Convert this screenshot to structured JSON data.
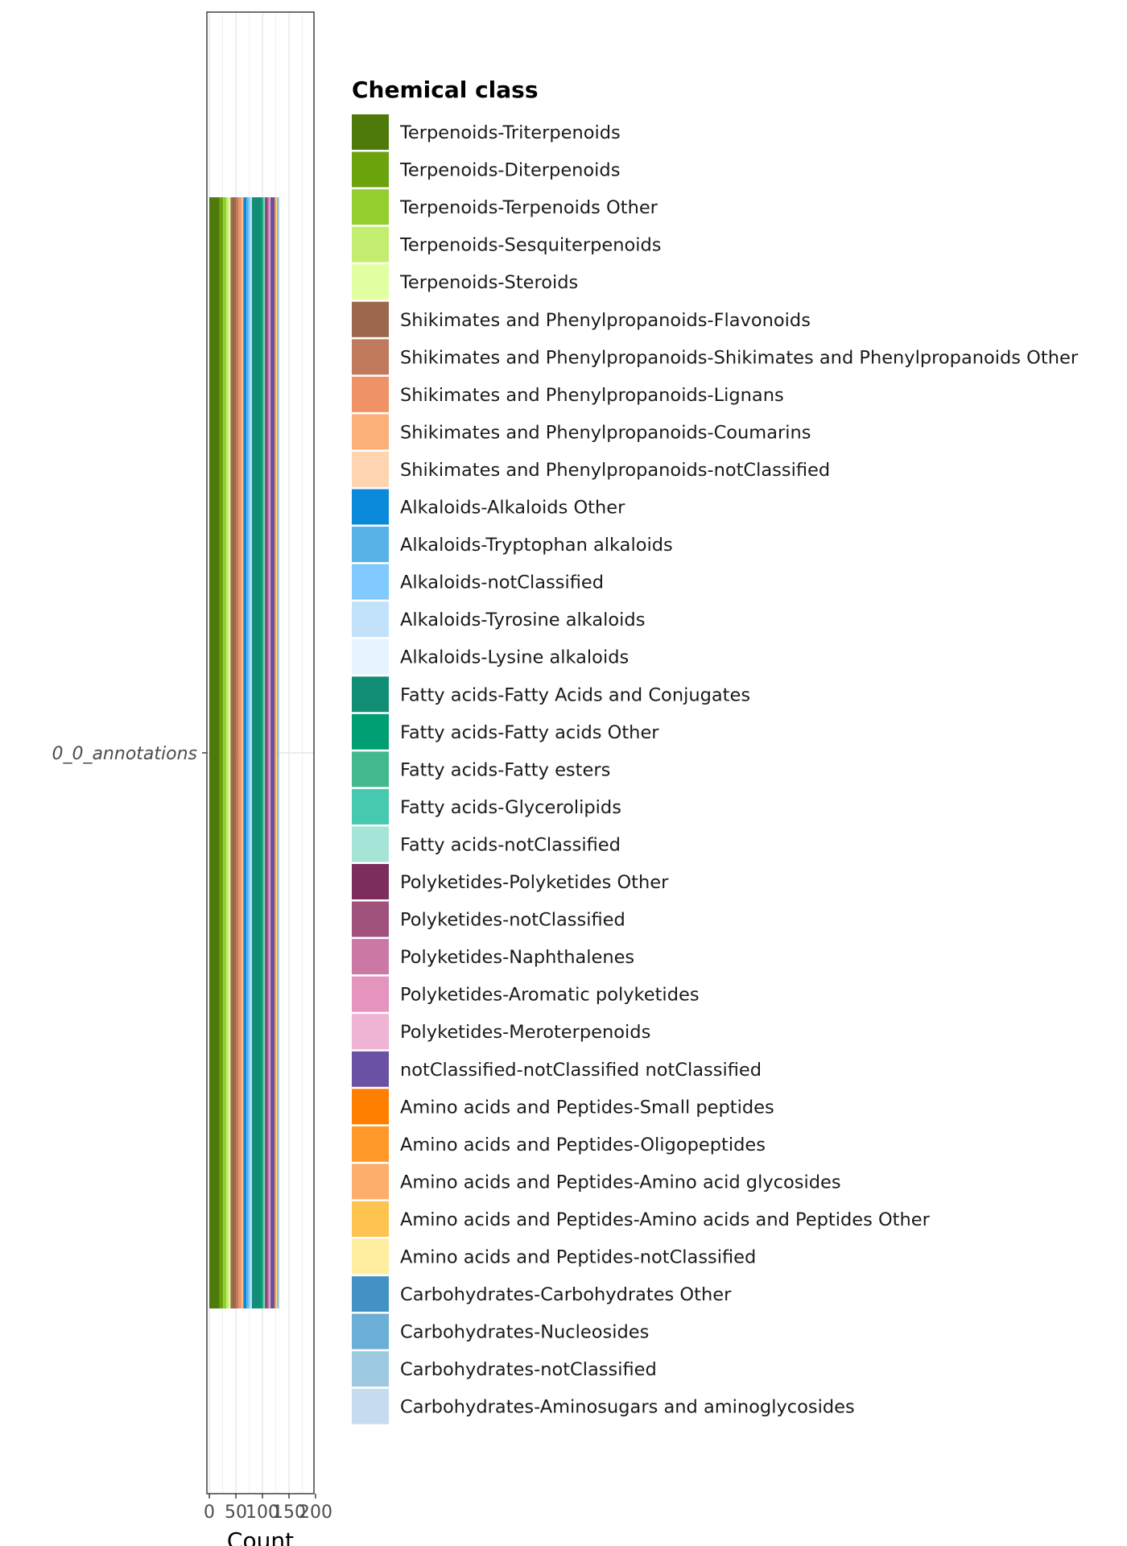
{
  "chart_data": {
    "type": "bar",
    "orientation": "horizontal",
    "stacked": true,
    "categories": [
      "0_0_annotations"
    ],
    "xlabel": "Count",
    "ylabel": "",
    "xlim": [
      0,
      200
    ],
    "x_ticks": [
      "0",
      "50",
      "100",
      "150",
      "200"
    ],
    "grid": true,
    "legend_title": "Chemical class",
    "legend_position": "right",
    "series": [
      {
        "name": "Terpenoids-Triterpenoids",
        "color": "#4d7a0a",
        "values": [
          19
        ]
      },
      {
        "name": "Terpenoids-Diterpenoids",
        "color": "#6aa30c",
        "values": [
          7
        ]
      },
      {
        "name": "Terpenoids-Terpenoids Other",
        "color": "#92cf2e",
        "values": [
          6
        ]
      },
      {
        "name": "Terpenoids-Sesquiterpenoids",
        "color": "#c2ed6e",
        "values": [
          5
        ]
      },
      {
        "name": "Terpenoids-Steroids",
        "color": "#e2ffa2",
        "values": [
          3
        ]
      },
      {
        "name": "Shikimates and Phenylpropanoids-Flavonoids",
        "color": "#9c684c",
        "values": [
          10
        ]
      },
      {
        "name": "Shikimates and Phenylpropanoids-Shikimates and Phenylpropanoids Other",
        "color": "#c27a5c",
        "values": [
          5
        ]
      },
      {
        "name": "Shikimates and Phenylpropanoids-Lignans",
        "color": "#ef9266",
        "values": [
          5
        ]
      },
      {
        "name": "Shikimates and Phenylpropanoids-Coumarins",
        "color": "#fbb07a",
        "values": [
          3
        ]
      },
      {
        "name": "Shikimates and Phenylpropanoids-notClassified",
        "color": "#fed5b0",
        "values": [
          1
        ]
      },
      {
        "name": "Alkaloids-Alkaloids Other",
        "color": "#0a8ad8",
        "values": [
          6
        ]
      },
      {
        "name": "Alkaloids-Tryptophan alkaloids",
        "color": "#56b2e7",
        "values": [
          4
        ]
      },
      {
        "name": "Alkaloids-notClassified",
        "color": "#80caff",
        "values": [
          3
        ]
      },
      {
        "name": "Alkaloids-Tyrosine alkaloids",
        "color": "#c2e2fc",
        "values": [
          2
        ]
      },
      {
        "name": "Alkaloids-Lysine alkaloids",
        "color": "#e8f4fd",
        "values": [
          1
        ]
      },
      {
        "name": "Fatty acids-Fatty Acids and Conjugates",
        "color": "#128e76",
        "values": [
          17
        ]
      },
      {
        "name": "Fatty acids-Fatty acids Other",
        "color": "#009e73",
        "values": [
          3
        ]
      },
      {
        "name": "Fatty acids-Fatty esters",
        "color": "#42b98d",
        "values": [
          2
        ]
      },
      {
        "name": "Fatty acids-Glycerolipids",
        "color": "#46c9ae",
        "values": [
          2
        ]
      },
      {
        "name": "Fatty acids-notClassified",
        "color": "#a4e5d7",
        "values": [
          1
        ]
      },
      {
        "name": "Polyketides-Polyketides Other",
        "color": "#7c2d5b",
        "values": [
          3
        ]
      },
      {
        "name": "Polyketides-notClassified",
        "color": "#a0527d",
        "values": [
          3
        ]
      },
      {
        "name": "Polyketides-Naphthalenes",
        "color": "#cc78a5",
        "values": [
          2
        ]
      },
      {
        "name": "Polyketides-Aromatic polyketides",
        "color": "#e494bd",
        "values": [
          1
        ]
      },
      {
        "name": "Polyketides-Meroterpenoids",
        "color": "#efb3d3",
        "values": [
          1
        ]
      },
      {
        "name": "notClassified-notClassified notClassified",
        "color": "#6a51a3",
        "values": [
          8
        ]
      },
      {
        "name": "Amino acids and Peptides-Small peptides",
        "color": "#ff7f00",
        "values": [
          1
        ]
      },
      {
        "name": "Amino acids and Peptides-Oligopeptides",
        "color": "#fe9929",
        "values": [
          1
        ]
      },
      {
        "name": "Amino acids and Peptides-Amino acid glycosides",
        "color": "#fdae6b",
        "values": [
          1
        ]
      },
      {
        "name": "Amino acids and Peptides-Amino acids and Peptides Other",
        "color": "#fec44f",
        "values": [
          1
        ]
      },
      {
        "name": "Amino acids and Peptides-notClassified",
        "color": "#ffeda0",
        "values": [
          1
        ]
      },
      {
        "name": "Carbohydrates-Carbohydrates Other",
        "color": "#4292c6",
        "values": [
          1
        ]
      },
      {
        "name": "Carbohydrates-Nucleosides",
        "color": "#6baed6",
        "values": [
          1
        ]
      },
      {
        "name": "Carbohydrates-notClassified",
        "color": "#9ecae1",
        "values": [
          1
        ]
      },
      {
        "name": "Carbohydrates-Aminosugars and aminoglycosides",
        "color": "#c6dbef",
        "values": [
          1
        ]
      }
    ]
  }
}
